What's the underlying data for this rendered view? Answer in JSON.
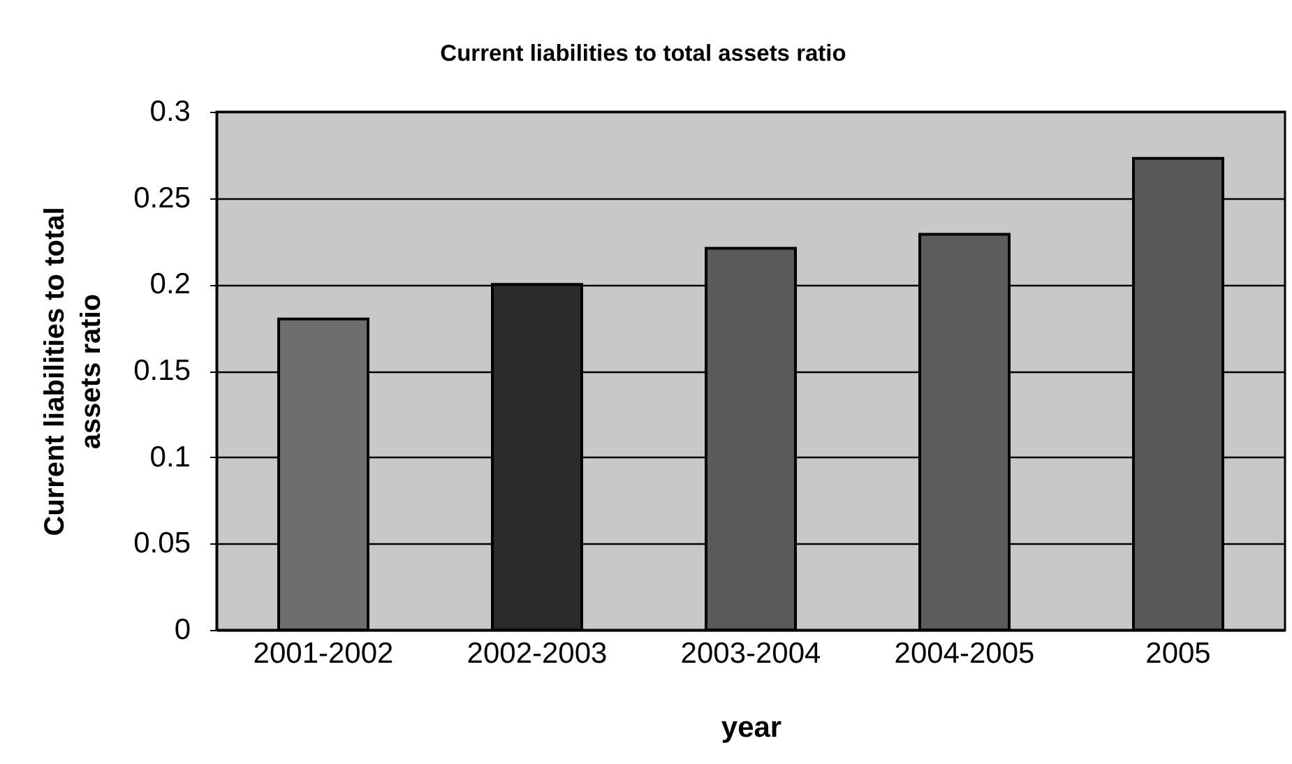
{
  "chart_data": {
    "type": "bar",
    "title": "Current liabilities to total assets ratio",
    "xlabel": "year",
    "ylabel": "Current liabilities to total assets ratio",
    "categories": [
      "2001-2002",
      "2002-2003",
      "2003-2004",
      "2004-2005",
      "2005"
    ],
    "values": [
      0.18,
      0.2,
      0.221,
      0.229,
      0.273
    ],
    "colors": [
      "#6e6e6e",
      "#2b2b2b",
      "#5a5a5a",
      "#5c5c5c",
      "#585858"
    ],
    "ylim": [
      0,
      0.3
    ],
    "yticks": [
      0,
      0.05,
      0.1,
      0.15,
      0.2,
      0.25,
      0.3
    ],
    "grid": "y"
  }
}
